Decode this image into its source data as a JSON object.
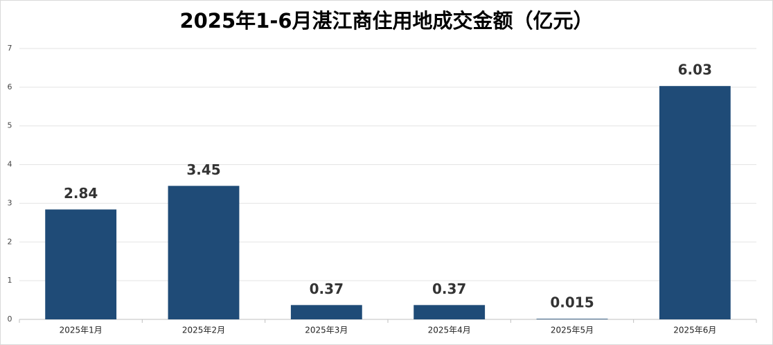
{
  "chart_data": {
    "type": "bar",
    "title": "2025年1-6月湛江商住用地成交金额（亿元）",
    "categories": [
      "2025年1月",
      "2025年2月",
      "2025年3月",
      "2025年4月",
      "2025年5月",
      "2025年6月"
    ],
    "values": [
      2.84,
      3.45,
      0.37,
      0.37,
      0.015,
      6.03
    ],
    "color": "#1f4b77",
    "ylim": [
      0,
      7
    ],
    "yticks": [
      0,
      1,
      2,
      3,
      4,
      5,
      6,
      7
    ],
    "grid": true
  }
}
